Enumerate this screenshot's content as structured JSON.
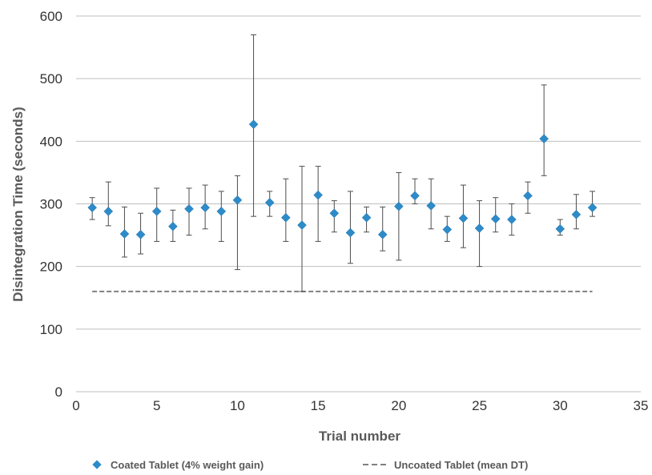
{
  "chart_data": {
    "type": "scatter",
    "xlabel": "Trial number",
    "ylabel": "Disintegration Time (seconds)",
    "xlim": [
      0,
      35
    ],
    "ylim": [
      0,
      600
    ],
    "xticks": [
      0,
      5,
      10,
      15,
      20,
      25,
      30,
      35
    ],
    "yticks": [
      0,
      100,
      200,
      300,
      400,
      500,
      600
    ],
    "grid": "horizontal",
    "legend_position": "bottom",
    "series": [
      {
        "name": "Coated Tablet (4% weight gain)",
        "kind": "markers-with-error-bars",
        "marker": "diamond",
        "color": "#2E8BC9",
        "points": [
          {
            "x": 1,
            "y": 294,
            "low": 275,
            "high": 310
          },
          {
            "x": 2,
            "y": 288,
            "low": 265,
            "high": 335
          },
          {
            "x": 3,
            "y": 252,
            "low": 215,
            "high": 295
          },
          {
            "x": 4,
            "y": 251,
            "low": 220,
            "high": 285
          },
          {
            "x": 5,
            "y": 288,
            "low": 240,
            "high": 325
          },
          {
            "x": 6,
            "y": 264,
            "low": 240,
            "high": 290
          },
          {
            "x": 7,
            "y": 292,
            "low": 250,
            "high": 325
          },
          {
            "x": 8,
            "y": 294,
            "low": 260,
            "high": 330
          },
          {
            "x": 9,
            "y": 288,
            "low": 240,
            "high": 320
          },
          {
            "x": 10,
            "y": 306,
            "low": 195,
            "high": 345
          },
          {
            "x": 11,
            "y": 427,
            "low": 280,
            "high": 570
          },
          {
            "x": 12,
            "y": 302,
            "low": 280,
            "high": 320
          },
          {
            "x": 13,
            "y": 278,
            "low": 240,
            "high": 340
          },
          {
            "x": 14,
            "y": 266,
            "low": 160,
            "high": 360
          },
          {
            "x": 15,
            "y": 314,
            "low": 240,
            "high": 360
          },
          {
            "x": 16,
            "y": 285,
            "low": 255,
            "high": 305
          },
          {
            "x": 17,
            "y": 254,
            "low": 205,
            "high": 320
          },
          {
            "x": 18,
            "y": 278,
            "low": 255,
            "high": 295
          },
          {
            "x": 19,
            "y": 251,
            "low": 225,
            "high": 295
          },
          {
            "x": 20,
            "y": 296,
            "low": 210,
            "high": 350
          },
          {
            "x": 21,
            "y": 313,
            "low": 300,
            "high": 340
          },
          {
            "x": 22,
            "y": 297,
            "low": 260,
            "high": 340
          },
          {
            "x": 23,
            "y": 259,
            "low": 240,
            "high": 280
          },
          {
            "x": 24,
            "y": 277,
            "low": 230,
            "high": 330
          },
          {
            "x": 25,
            "y": 261,
            "low": 200,
            "high": 305
          },
          {
            "x": 26,
            "y": 276,
            "low": 255,
            "high": 310
          },
          {
            "x": 27,
            "y": 275,
            "low": 250,
            "high": 300
          },
          {
            "x": 28,
            "y": 313,
            "low": 285,
            "high": 335
          },
          {
            "x": 29,
            "y": 404,
            "low": 345,
            "high": 490
          },
          {
            "x": 30,
            "y": 260,
            "low": 250,
            "high": 275
          },
          {
            "x": 31,
            "y": 283,
            "low": 260,
            "high": 315
          },
          {
            "x": 32,
            "y": 294,
            "low": 280,
            "high": 320
          }
        ]
      },
      {
        "name": "Uncoated Tablet (mean DT)",
        "kind": "dashed-line",
        "color": "#808080",
        "points": [
          {
            "x": 1,
            "y": 160
          },
          {
            "x": 32,
            "y": 160
          }
        ]
      }
    ]
  }
}
